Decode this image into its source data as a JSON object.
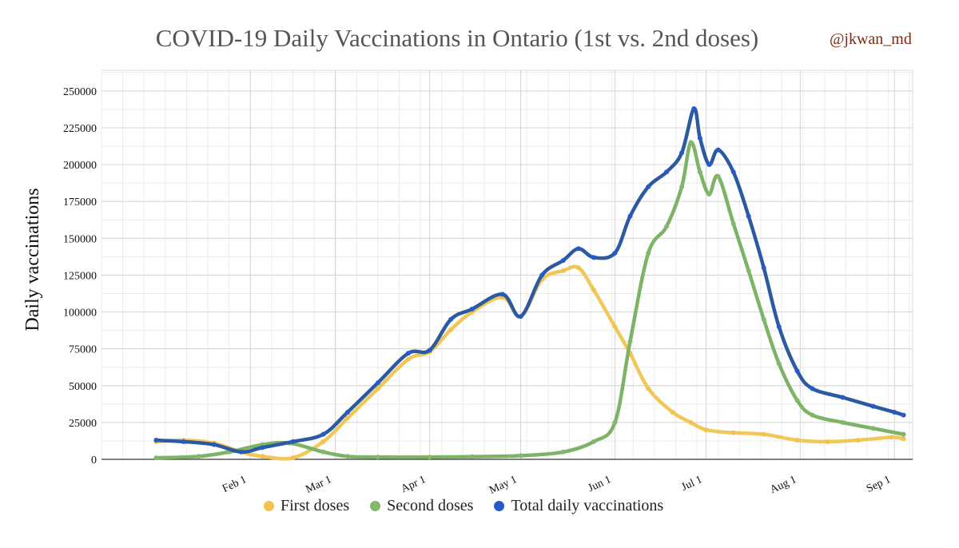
{
  "title": "COVID-19 Daily Vaccinations in Ontario (1st vs. 2nd doses)",
  "handle": "@jkwan_md",
  "chart_data": {
    "type": "line",
    "ylabel": "Daily vaccinations",
    "xlabel": "",
    "ylim": [
      0,
      250000
    ],
    "yticks": [
      "250000",
      "225000",
      "200000",
      "175000",
      "150000",
      "125000",
      "100000",
      "75000",
      "50000",
      "25000",
      "0"
    ],
    "xticks": [
      "Feb 1",
      "Mar 1",
      "Apr 1",
      "May 1",
      "Jun 1",
      "Jul 1",
      "Aug 1",
      "Sep 1"
    ],
    "grid": true,
    "legend_position": "bottom",
    "series": [
      {
        "name": "First doses",
        "color": "#f2c14e",
        "x": [
          "2021-01-01",
          "2021-01-10",
          "2021-01-20",
          "2021-01-29",
          "2021-02-05",
          "2021-02-15",
          "2021-02-25",
          "2021-03-05",
          "2021-03-15",
          "2021-03-25",
          "2021-04-01",
          "2021-04-08",
          "2021-04-15",
          "2021-04-25",
          "2021-05-01",
          "2021-05-08",
          "2021-05-15",
          "2021-05-20",
          "2021-05-25",
          "2021-06-01",
          "2021-06-06",
          "2021-06-12",
          "2021-06-20",
          "2021-06-26",
          "2021-07-01",
          "2021-07-10",
          "2021-07-20",
          "2021-07-31",
          "2021-08-10",
          "2021-08-20",
          "2021-08-31",
          "2021-09-04"
        ],
        "values": [
          12000,
          13000,
          11000,
          5000,
          2000,
          1000,
          12000,
          28000,
          48000,
          68000,
          73000,
          88000,
          100000,
          110000,
          97000,
          122000,
          128000,
          130000,
          115000,
          90000,
          72000,
          48000,
          32000,
          25000,
          20000,
          18000,
          17000,
          13000,
          12000,
          13000,
          15000,
          14000
        ]
      },
      {
        "name": "Second doses",
        "color": "#82b86b",
        "x": [
          "2021-01-01",
          "2021-01-15",
          "2021-01-25",
          "2021-02-05",
          "2021-02-14",
          "2021-02-25",
          "2021-03-05",
          "2021-03-15",
          "2021-04-01",
          "2021-04-15",
          "2021-05-01",
          "2021-05-15",
          "2021-05-25",
          "2021-06-01",
          "2021-06-06",
          "2021-06-12",
          "2021-06-18",
          "2021-06-23",
          "2021-06-26",
          "2021-06-29",
          "2021-07-02",
          "2021-07-05",
          "2021-07-10",
          "2021-07-15",
          "2021-07-20",
          "2021-07-25",
          "2021-07-31",
          "2021-08-05",
          "2021-08-15",
          "2021-08-25",
          "2021-09-04"
        ],
        "values": [
          1000,
          2000,
          5000,
          10000,
          11000,
          5000,
          2000,
          1500,
          1500,
          1800,
          2500,
          5000,
          12000,
          25000,
          80000,
          140000,
          158000,
          185000,
          215000,
          195000,
          180000,
          192000,
          160000,
          128000,
          95000,
          65000,
          40000,
          30000,
          25000,
          21000,
          17000
        ]
      },
      {
        "name": "Total daily vaccinations",
        "color": "#2c5aa0",
        "x": [
          "2021-01-01",
          "2021-01-10",
          "2021-01-20",
          "2021-01-29",
          "2021-02-05",
          "2021-02-15",
          "2021-02-25",
          "2021-03-05",
          "2021-03-15",
          "2021-03-25",
          "2021-04-01",
          "2021-04-08",
          "2021-04-15",
          "2021-04-25",
          "2021-05-01",
          "2021-05-08",
          "2021-05-15",
          "2021-05-20",
          "2021-05-25",
          "2021-06-01",
          "2021-06-06",
          "2021-06-12",
          "2021-06-18",
          "2021-06-23",
          "2021-06-27",
          "2021-06-29",
          "2021-07-02",
          "2021-07-05",
          "2021-07-10",
          "2021-07-15",
          "2021-07-20",
          "2021-07-25",
          "2021-07-31",
          "2021-08-05",
          "2021-08-15",
          "2021-08-25",
          "2021-09-01",
          "2021-09-04"
        ],
        "values": [
          13000,
          12000,
          10000,
          5000,
          8000,
          12000,
          17000,
          32000,
          52000,
          72000,
          74000,
          95000,
          102000,
          112000,
          97000,
          125000,
          135000,
          143000,
          137000,
          140000,
          165000,
          185000,
          195000,
          208000,
          238000,
          218000,
          200000,
          210000,
          195000,
          165000,
          130000,
          90000,
          60000,
          48000,
          42000,
          36000,
          32000,
          30000
        ]
      }
    ]
  }
}
